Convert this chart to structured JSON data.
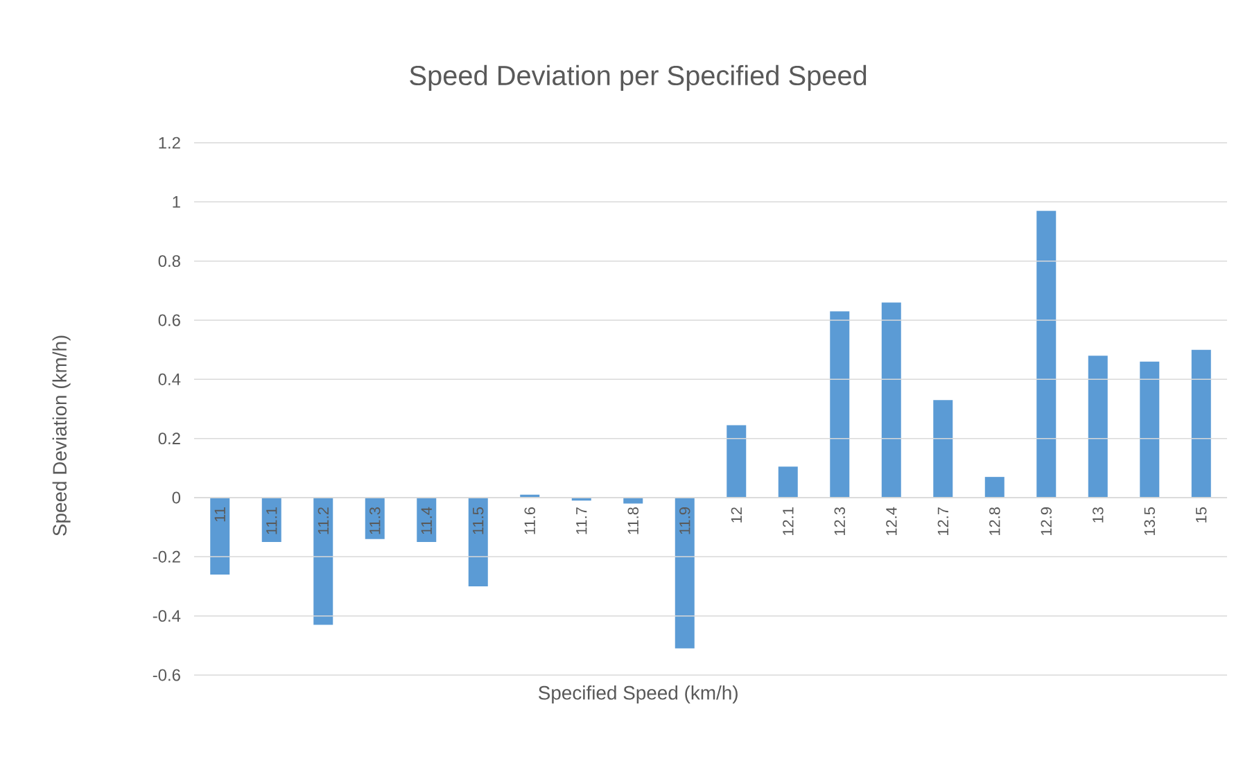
{
  "chart_data": {
    "type": "bar",
    "title": "Speed Deviation per Specified Speed",
    "xlabel": "Specified Speed (km/h)",
    "ylabel": "Speed Deviation (km/h)",
    "categories": [
      "11",
      "11.1",
      "11.2",
      "11.3",
      "11.4",
      "11.5",
      "11.6",
      "11.7",
      "11.8",
      "11.9",
      "12",
      "12.1",
      "12.3",
      "12.4",
      "12.7",
      "12.8",
      "12.9",
      "13",
      "13.5",
      "15"
    ],
    "values": [
      -0.26,
      -0.15,
      -0.43,
      -0.14,
      -0.15,
      -0.3,
      0.01,
      -0.01,
      -0.02,
      -0.51,
      0.245,
      0.105,
      0.63,
      0.66,
      0.33,
      0.07,
      0.97,
      0.48,
      0.46,
      0.5
    ],
    "color": "#5b9bd5",
    "ylim": [
      -0.6,
      1.2
    ],
    "yticks": [
      -0.6,
      -0.4,
      -0.2,
      0,
      0.2,
      0.4,
      0.6,
      0.8,
      1,
      1.2
    ],
    "grid": "y"
  }
}
